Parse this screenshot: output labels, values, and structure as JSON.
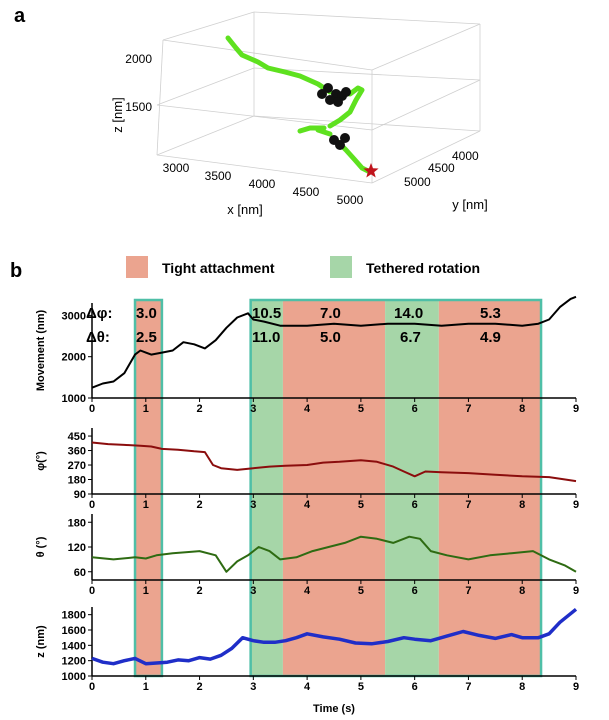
{
  "panel_a": {
    "label": "a",
    "chart_data": {
      "type": "scatter",
      "title": "",
      "xlabel": "x [nm]",
      "ylabel": "y [nm]",
      "zlabel": "z [nm]",
      "x_ticks": [
        "3000",
        "3500",
        "4000",
        "4500",
        "5000"
      ],
      "y_ticks": [
        "4000",
        "4500",
        "5000"
      ],
      "z_ticks": [
        "2000",
        "1500"
      ],
      "series_colors": {
        "trajectory": "#5ee11f",
        "bound": "#111111",
        "start": "#c0141c"
      },
      "start_marker": "star",
      "note_colors": "green = moving, black = bound clusters"
    }
  },
  "panel_b": {
    "label": "b",
    "legend": [
      {
        "label": "Tight attachment",
        "color": "#eba48f"
      },
      {
        "label": "Tethered rotation",
        "color": "#a6d6a8"
      }
    ],
    "annotations": {
      "dphi_label": "Δφ:",
      "dtheta_label": "Δθ:",
      "dphi_values": [
        "3.0",
        "10.5",
        "7.0",
        "14.0",
        "5.3"
      ],
      "dtheta_values": [
        "2.5",
        "11.0",
        "5.0",
        "6.7",
        "4.9"
      ]
    },
    "x_label": "Time (s)",
    "x_ticks": [
      "0",
      "1",
      "2",
      "3",
      "4",
      "5",
      "6",
      "7",
      "8",
      "9"
    ],
    "panel_x_ticks": [
      "0",
      "1",
      "2",
      "3",
      "4",
      "5",
      "6",
      "7",
      "8"
    ],
    "chart_data": [
      {
        "type": "line",
        "ylabel": "Movement (nm)",
        "yticks": [
          "1000",
          "2000",
          "3000"
        ],
        "ylim": [
          1000,
          3300
        ],
        "color": "#000000",
        "x": [
          0,
          0.2,
          0.4,
          0.6,
          0.8,
          0.9,
          1.0,
          1.1,
          1.3,
          1.5,
          1.7,
          1.9,
          2.1,
          2.3,
          2.5,
          2.7,
          2.9,
          3.0,
          3.2,
          3.5,
          4.0,
          4.5,
          5.0,
          5.5,
          6.0,
          6.5,
          7.0,
          7.5,
          8.0,
          8.3,
          8.5,
          8.7,
          8.9,
          9.0
        ],
        "y": [
          1250,
          1350,
          1400,
          1600,
          2050,
          2150,
          2100,
          2050,
          2100,
          2150,
          2350,
          2300,
          2200,
          2400,
          2700,
          2950,
          3050,
          2900,
          2850,
          2750,
          2750,
          2800,
          2750,
          2800,
          2800,
          2750,
          2800,
          2800,
          2750,
          2800,
          2900,
          3200,
          3400,
          3450
        ]
      },
      {
        "type": "line",
        "ylabel": "φ(°)",
        "yticks": [
          "90",
          "180",
          "270",
          "360",
          "450"
        ],
        "ylim": [
          90,
          500
        ],
        "color": "#8b0d0d",
        "x": [
          0,
          0.3,
          0.6,
          0.9,
          1.1,
          1.3,
          1.6,
          1.9,
          2.1,
          2.25,
          2.4,
          2.7,
          3.0,
          3.3,
          3.6,
          4.0,
          4.3,
          4.6,
          5.0,
          5.3,
          5.6,
          5.8,
          6.0,
          6.2,
          6.5,
          7.0,
          7.5,
          8.0,
          8.5,
          8.8,
          9.0
        ],
        "y": [
          410,
          400,
          395,
          390,
          385,
          370,
          365,
          355,
          350,
          270,
          250,
          240,
          250,
          260,
          265,
          270,
          285,
          290,
          300,
          290,
          260,
          230,
          200,
          230,
          225,
          220,
          210,
          200,
          195,
          180,
          170
        ]
      },
      {
        "type": "line",
        "ylabel": "θ (°)",
        "yticks": [
          "60",
          "120",
          "180"
        ],
        "ylim": [
          40,
          200
        ],
        "color": "#2e6b12",
        "x": [
          0,
          0.4,
          0.8,
          1.0,
          1.2,
          1.5,
          1.8,
          2.0,
          2.3,
          2.5,
          2.7,
          2.9,
          3.1,
          3.3,
          3.5,
          3.8,
          4.1,
          4.4,
          4.7,
          5.0,
          5.3,
          5.6,
          5.9,
          6.1,
          6.3,
          6.6,
          7.0,
          7.4,
          7.8,
          8.2,
          8.5,
          8.8,
          9.0
        ],
        "y": [
          95,
          90,
          95,
          92,
          100,
          105,
          108,
          110,
          100,
          60,
          85,
          100,
          120,
          110,
          90,
          95,
          110,
          120,
          130,
          145,
          140,
          130,
          145,
          140,
          110,
          100,
          90,
          100,
          105,
          110,
          90,
          75,
          60
        ]
      },
      {
        "type": "line",
        "ylabel": "z (nm)",
        "yticks": [
          "1000",
          "1200",
          "1400",
          "1600",
          "1800"
        ],
        "ylim": [
          1000,
          1900
        ],
        "color": "#1f2ec8",
        "x": [
          0,
          0.2,
          0.4,
          0.6,
          0.8,
          1.0,
          1.2,
          1.4,
          1.6,
          1.8,
          2.0,
          2.2,
          2.4,
          2.6,
          2.8,
          3.0,
          3.2,
          3.4,
          3.6,
          3.8,
          4.0,
          4.3,
          4.6,
          4.9,
          5.2,
          5.5,
          5.8,
          6.0,
          6.3,
          6.6,
          6.9,
          7.2,
          7.5,
          7.8,
          8.0,
          8.3,
          8.5,
          8.7,
          9.0
        ],
        "y": [
          1230,
          1180,
          1160,
          1200,
          1230,
          1160,
          1170,
          1180,
          1210,
          1200,
          1240,
          1220,
          1270,
          1360,
          1500,
          1460,
          1440,
          1440,
          1460,
          1500,
          1550,
          1510,
          1480,
          1430,
          1420,
          1450,
          1500,
          1480,
          1460,
          1520,
          1580,
          1530,
          1490,
          1540,
          1500,
          1500,
          1550,
          1700,
          1870
        ]
      }
    ],
    "regions": [
      {
        "start": 0.8,
        "end": 1.3,
        "kind": "tight"
      },
      {
        "start": 2.95,
        "end": 3.55,
        "kind": "tethered"
      },
      {
        "start": 3.55,
        "end": 5.45,
        "kind": "tight"
      },
      {
        "start": 5.45,
        "end": 6.45,
        "kind": "tethered"
      },
      {
        "start": 6.45,
        "end": 8.35,
        "kind": "tight"
      }
    ]
  }
}
